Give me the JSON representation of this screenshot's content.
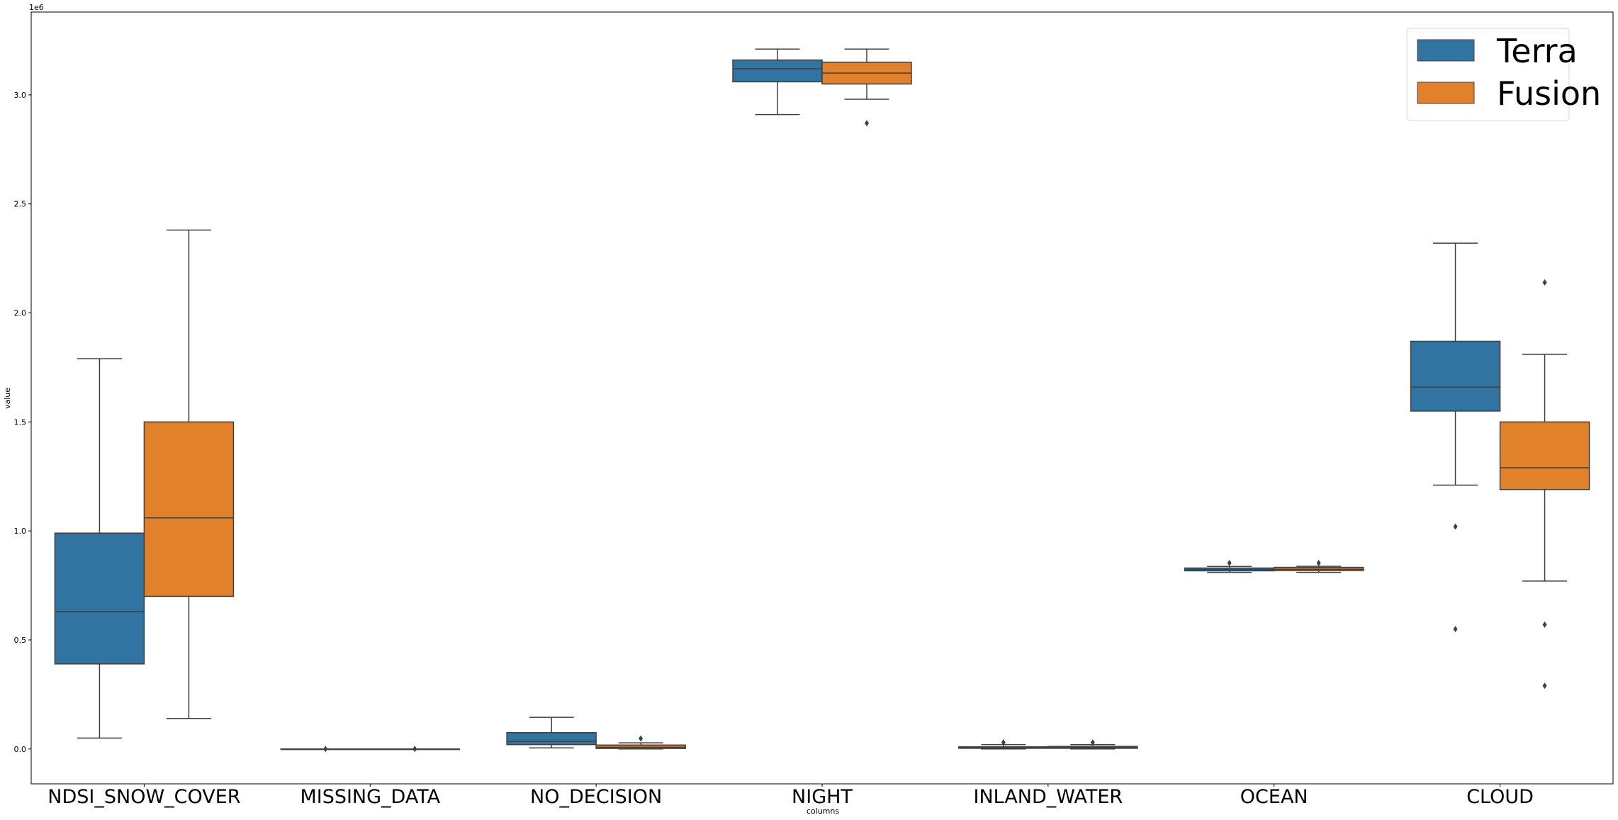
{
  "chart_data": {
    "type": "box",
    "xlabel": "columns",
    "ylabel": "value",
    "y_offset_label": "1e6",
    "ylim": [
      -0.16,
      3.38
    ],
    "y_ticks": [
      0.0,
      0.5,
      1.0,
      1.5,
      2.0,
      2.5,
      3.0
    ],
    "y_tick_labels": [
      "0.0",
      "0.5",
      "1.0",
      "1.5",
      "2.0",
      "2.5",
      "3.0"
    ],
    "grid": false,
    "legend_position": "top-right",
    "categories": [
      "NDSI_SNOW_COVER",
      "MISSING_DATA",
      "NO_DECISION",
      "NIGHT",
      "INLAND_WATER",
      "OCEAN",
      "CLOUD"
    ],
    "series": [
      {
        "name": "Terra",
        "color": "#3274a1",
        "boxes": [
          {
            "whisker_low": 0.05,
            "q1": 0.39,
            "median": 0.63,
            "q3": 0.99,
            "whisker_high": 1.79,
            "outliers": []
          },
          {
            "whisker_low": 0.0,
            "q1": 0.0,
            "median": 0.0,
            "q3": 0.0,
            "whisker_high": 0.0,
            "outliers": [
              0.0
            ]
          },
          {
            "whisker_low": 0.005,
            "q1": 0.02,
            "median": 0.035,
            "q3": 0.075,
            "whisker_high": 0.145,
            "outliers": []
          },
          {
            "whisker_low": 2.91,
            "q1": 3.06,
            "median": 3.12,
            "q3": 3.16,
            "whisker_high": 3.21,
            "outliers": []
          },
          {
            "whisker_low": 0.0,
            "q1": 0.003,
            "median": 0.006,
            "q3": 0.01,
            "whisker_high": 0.02,
            "outliers": [
              0.03
            ]
          },
          {
            "whisker_low": 0.81,
            "q1": 0.817,
            "median": 0.823,
            "q3": 0.83,
            "whisker_high": 0.837,
            "outliers": [
              0.853
            ]
          },
          {
            "whisker_low": 1.21,
            "q1": 1.55,
            "median": 1.66,
            "q3": 1.87,
            "whisker_high": 2.32,
            "outliers": [
              1.02,
              0.55
            ]
          }
        ]
      },
      {
        "name": "Fusion",
        "color": "#e1812c",
        "boxes": [
          {
            "whisker_low": 0.14,
            "q1": 0.7,
            "median": 1.06,
            "q3": 1.5,
            "whisker_high": 2.38,
            "outliers": []
          },
          {
            "whisker_low": 0.0,
            "q1": 0.0,
            "median": 0.0,
            "q3": 0.0,
            "whisker_high": 0.0,
            "outliers": [
              0.0
            ]
          },
          {
            "whisker_low": 0.0,
            "q1": 0.002,
            "median": 0.008,
            "q3": 0.018,
            "whisker_high": 0.028,
            "outliers": [
              0.048
            ]
          },
          {
            "whisker_low": 2.98,
            "q1": 3.05,
            "median": 3.1,
            "q3": 3.15,
            "whisker_high": 3.21,
            "outliers": [
              2.87
            ]
          },
          {
            "whisker_low": 0.0,
            "q1": 0.003,
            "median": 0.007,
            "q3": 0.012,
            "whisker_high": 0.02,
            "outliers": [
              0.03
            ]
          },
          {
            "whisker_low": 0.81,
            "q1": 0.818,
            "median": 0.824,
            "q3": 0.833,
            "whisker_high": 0.838,
            "outliers": [
              0.853
            ]
          },
          {
            "whisker_low": 0.77,
            "q1": 1.19,
            "median": 1.29,
            "q3": 1.5,
            "whisker_high": 1.81,
            "outliers": [
              2.14,
              0.57,
              0.29
            ]
          }
        ]
      }
    ]
  }
}
